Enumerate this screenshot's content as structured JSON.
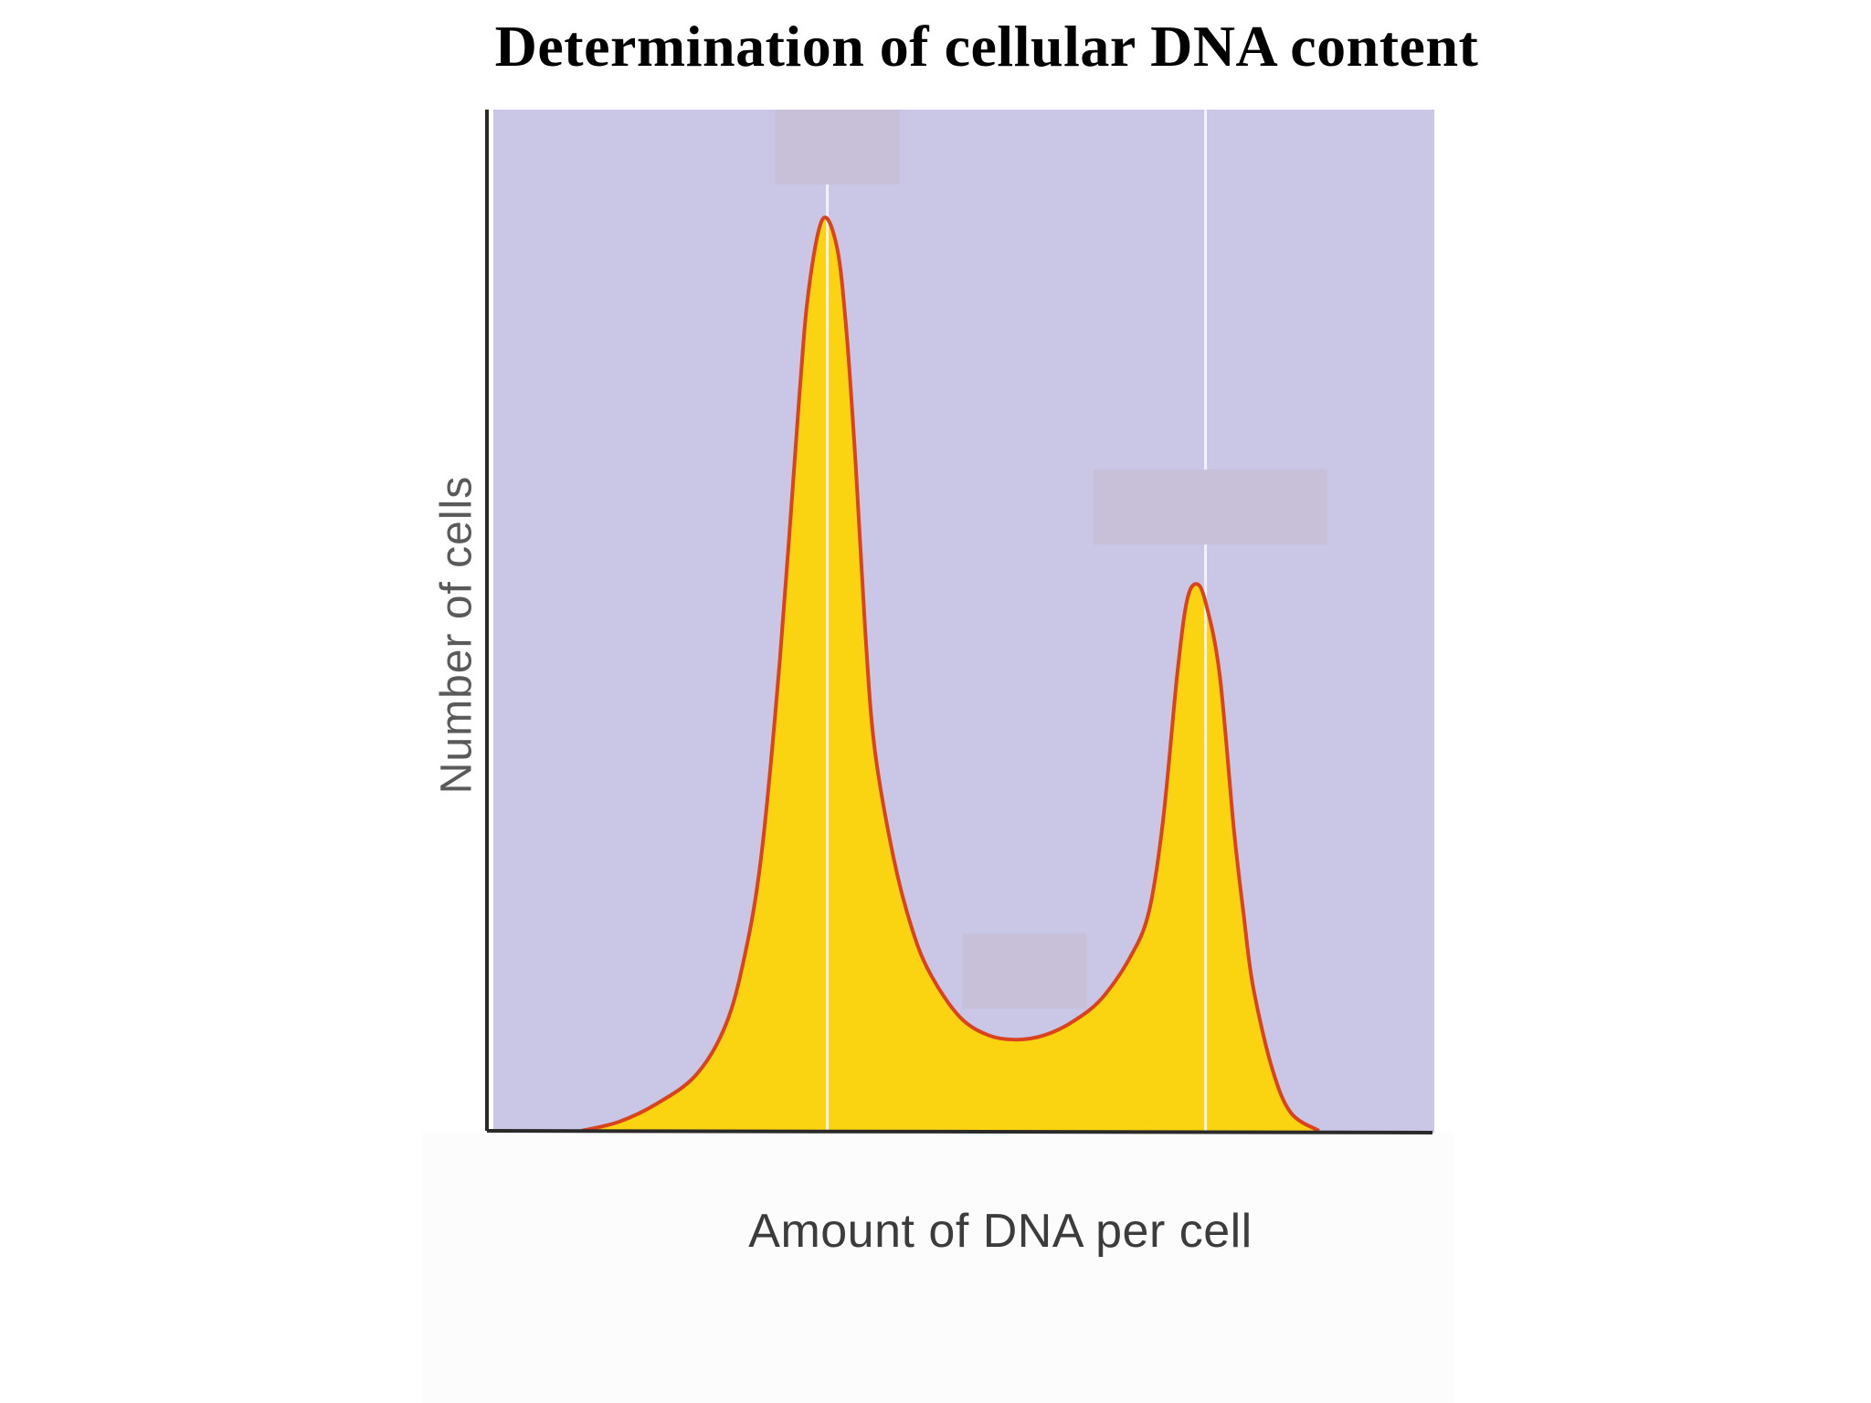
{
  "slide": {
    "title": "Determination of cellular DNA content"
  },
  "chart_data": {
    "type": "area",
    "title": "Determination of cellular DNA content",
    "xlabel": "Amount of DNA per cell",
    "ylabel": "Number of cells",
    "xlim": [
      0,
      100
    ],
    "ylim": [
      0,
      100
    ],
    "grid": false,
    "x_ticks": [],
    "y_ticks": [],
    "series": [
      {
        "x": [
          10,
          14,
          18,
          22,
          25,
          27,
          29,
          31,
          33,
          34,
          35.5,
          37,
          38,
          39,
          40,
          41,
          43,
          45,
          47,
          50,
          53,
          56,
          59,
          62,
          65,
          68,
          70,
          71.5,
          73,
          74,
          75,
          76,
          77.5,
          79,
          80,
          81,
          83,
          85,
          88
        ],
        "y": [
          0,
          1,
          3,
          6,
          11,
          18,
          30,
          52,
          80,
          92,
          100,
          97,
          88,
          73,
          55,
          42,
          30,
          22,
          17,
          12.5,
          10.5,
          10,
          10.5,
          12,
          14.5,
          19,
          24,
          34,
          50,
          58,
          60,
          58,
          50,
          33,
          24,
          16,
          7,
          2,
          0
        ]
      }
    ],
    "reference_lines_x": [
      36,
      76
    ],
    "colors": {
      "plot_background": "#c9c6e6",
      "fill": "#fbd411",
      "outline": "#d9441e",
      "reference_line": "#f4f1ff",
      "axis": "#2a2a2a",
      "label_box": "#c8bfd8"
    }
  }
}
